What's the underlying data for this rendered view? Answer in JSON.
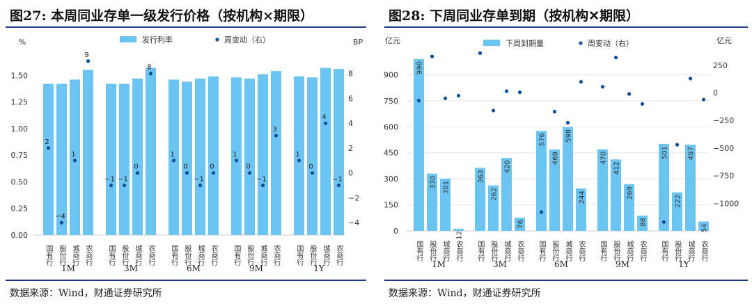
{
  "left": {
    "title": "图27: 本周同业存单一级发行价格（按机构×期限）",
    "source": "数据来源：Wind，财通证券研究所"
  },
  "right": {
    "title": "图28: 下周同业存单到期（按机构✕期限）",
    "source": "数据来源：Wind，财通证券研究所"
  },
  "chart_data": [
    {
      "type": "bar",
      "bar_color": "#6cc4f2",
      "point_color": "#0d4f9c",
      "legend": {
        "bar": "发行利率",
        "point": "周变动（右）",
        "placement": "top-center"
      },
      "ylabel_left": "%",
      "ylabel_right": "BP",
      "ylim_left": [
        0,
        1.75
      ],
      "yticks_left": [
        "0.00",
        "0.25",
        "0.50",
        "0.75",
        "1.00",
        "1.25",
        "1.50"
      ],
      "ylim_right": [
        -5,
        10
      ],
      "yticks_right": [
        "−4",
        "−2",
        "0",
        "2",
        "4",
        "6",
        "8"
      ],
      "grid": false,
      "groups": [
        "1M",
        "3M",
        "6M",
        "9M",
        "1Y"
      ],
      "institutions": [
        "国有行",
        "股份行",
        "城商行",
        "农商行"
      ],
      "series": [
        {
          "name": "发行利率",
          "values": [
            [
              1.42,
              1.42,
              1.46,
              1.55
            ],
            [
              1.42,
              1.42,
              1.47,
              1.57
            ],
            [
              1.46,
              1.44,
              1.47,
              1.49
            ],
            [
              1.48,
              1.47,
              1.51,
              1.54
            ],
            [
              1.49,
              1.48,
              1.57,
              1.56
            ]
          ]
        },
        {
          "name": "周变动（右）",
          "values": [
            [
              2,
              -4,
              1,
              9
            ],
            [
              -1,
              -1,
              0,
              8
            ],
            [
              1,
              0,
              -1,
              0
            ],
            [
              1,
              0,
              -1,
              3
            ],
            [
              1,
              0,
              4,
              -1
            ]
          ]
        }
      ]
    },
    {
      "type": "bar",
      "bar_color": "#6cc4f2",
      "point_color": "#0d4f9c",
      "legend": {
        "bar": "下周到期量",
        "point": "周变动（右）",
        "placement": "top-center"
      },
      "ylabel_left": "亿元",
      "ylabel_right": "亿元",
      "ylim_left": [
        0,
        1050
      ],
      "yticks_left": [
        "0",
        "150",
        "300",
        "450",
        "600",
        "750",
        "900"
      ],
      "ylim_right": [
        -1250,
        400
      ],
      "yticks_right": [
        "−1000",
        "−750",
        "−500",
        "−250",
        "0",
        "250"
      ],
      "grid": true,
      "groups": [
        "1M",
        "3M",
        "6M",
        "9M",
        "1Y"
      ],
      "institutions": [
        "国有行",
        "股份行",
        "城商行",
        "农商行"
      ],
      "series": [
        {
          "name": "下周到期量",
          "values": [
            [
              990,
              330,
              301,
              12
            ],
            [
              363,
              262,
              420,
              76
            ],
            [
              576,
              469,
              598,
              244
            ],
            [
              470,
              412,
              269,
              88
            ],
            [
              501,
              222,
              497,
              54
            ]
          ]
        },
        {
          "name": "周变动（右）",
          "values": [
            [
              -70,
              330,
              -50,
              -25
            ],
            [
              360,
              -160,
              15,
              5
            ],
            [
              -1080,
              -170,
              -270,
              100
            ],
            [
              55,
              320,
              -10,
              -100
            ],
            [
              -1170,
              -470,
              130,
              -60
            ]
          ]
        }
      ]
    }
  ]
}
